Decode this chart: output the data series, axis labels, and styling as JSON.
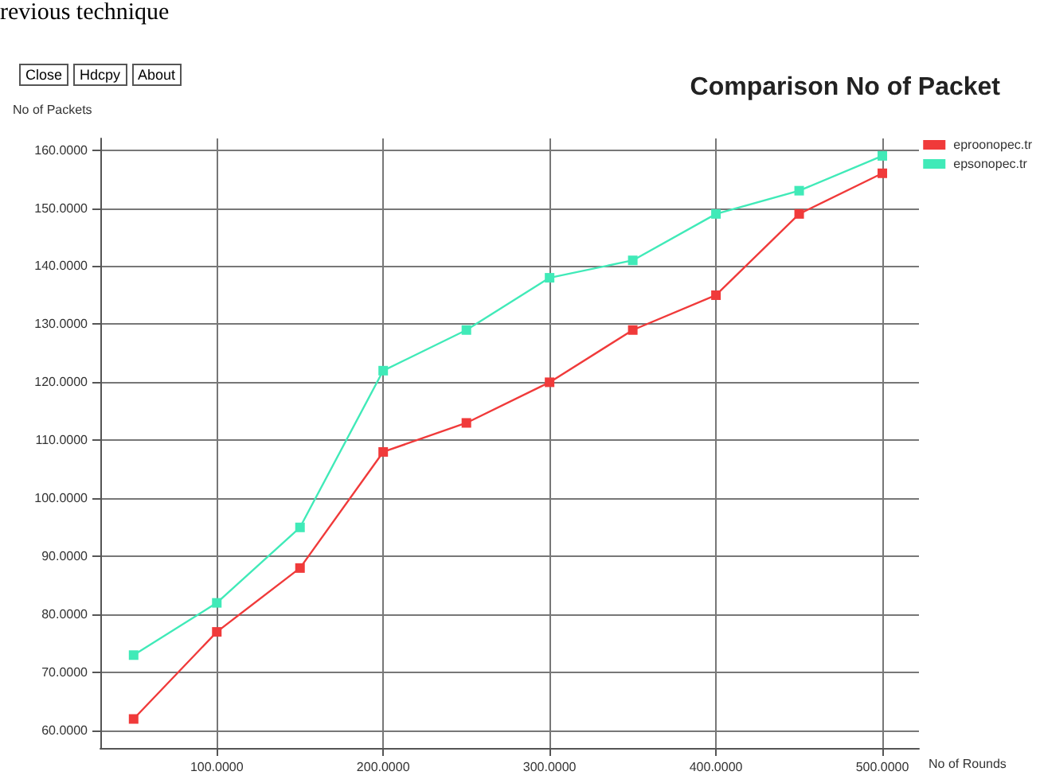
{
  "chart_data": {
    "type": "line",
    "title": "Comparison No of Packet",
    "xlabel": "No of Rounds",
    "ylabel": "No of Packets",
    "annotations": [
      "revious technique",
      "Close",
      "Hdcpy",
      "About"
    ],
    "x": [
      50,
      100,
      150,
      200,
      250,
      300,
      350,
      400,
      450,
      500
    ],
    "series": [
      {
        "name": "eproonopec.tr",
        "color": "#f03a3a",
        "values": [
          62,
          77,
          88,
          108,
          113,
          120,
          129,
          135,
          149,
          156
        ]
      },
      {
        "name": "epsonopec.tr",
        "color": "#40eab8",
        "values": [
          73,
          82,
          95,
          122,
          129,
          138,
          141,
          149,
          153,
          159
        ]
      }
    ],
    "xlim": [
      30,
      522
    ],
    "xticks": [
      {
        "value": 100,
        "label": "100.0000"
      },
      {
        "value": 200,
        "label": "200.0000"
      },
      {
        "value": 300,
        "label": "300.0000"
      },
      {
        "value": 400,
        "label": "400.0000"
      },
      {
        "value": 500,
        "label": "500.0000"
      }
    ],
    "ylim": [
      57,
      162
    ],
    "yticks": [
      {
        "value": 60,
        "label": "60.0000"
      },
      {
        "value": 70,
        "label": "70.0000"
      },
      {
        "value": 80,
        "label": "80.0000"
      },
      {
        "value": 90,
        "label": "90.0000"
      },
      {
        "value": 100,
        "label": "100.0000"
      },
      {
        "value": 110,
        "label": "110.0000"
      },
      {
        "value": 120,
        "label": "120.0000"
      },
      {
        "value": 130,
        "label": "130.0000"
      },
      {
        "value": 140,
        "label": "140.0000"
      },
      {
        "value": 150,
        "label": "150.0000"
      },
      {
        "value": 160,
        "label": "160.0000"
      }
    ],
    "grid": true,
    "legend": "top right",
    "marker": "square",
    "line_style": "solid"
  }
}
